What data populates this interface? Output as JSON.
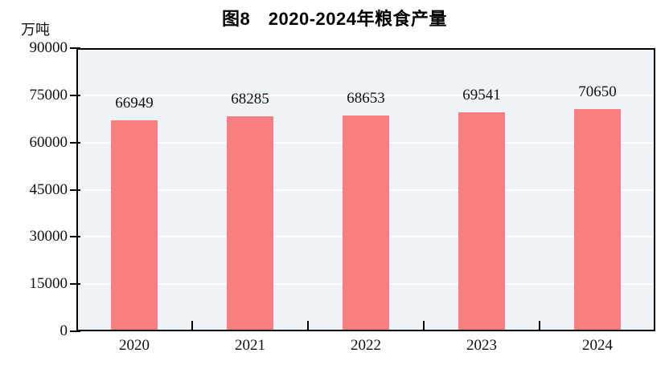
{
  "chart_data": {
    "type": "bar",
    "title": "图8　2020-2024年粮食产量",
    "ylabel": "万吨",
    "xlabel": "",
    "categories": [
      "2020",
      "2021",
      "2022",
      "2023",
      "2024"
    ],
    "values": [
      66949,
      68285,
      68653,
      69541,
      70650
    ],
    "bar_value_labels": [
      "66949",
      "68285",
      "68653",
      "69541",
      "70650"
    ],
    "ylim": [
      0,
      90000
    ],
    "yticks": [
      0,
      15000,
      30000,
      45000,
      60000,
      75000,
      90000
    ],
    "grid": true,
    "legend_position": "none",
    "colors": {
      "bar": "#fc7f7f",
      "plot_background": "#eef3f7",
      "gridline": "#ffffff",
      "axis": "#000000",
      "text": "#111111"
    }
  }
}
